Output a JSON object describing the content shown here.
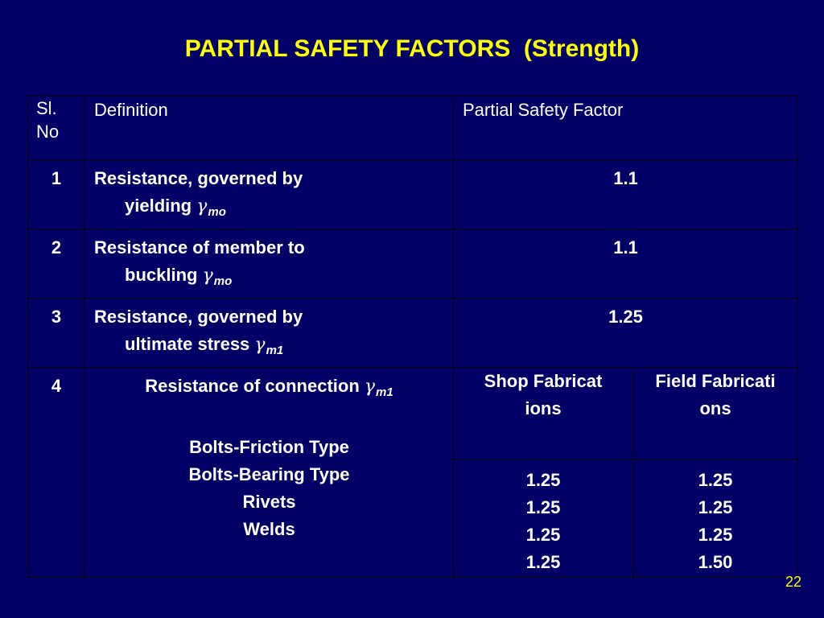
{
  "title": "PARTIAL SAFETY FACTORS  (Strength)",
  "table": {
    "headers": {
      "sl_line1": "Sl.",
      "sl_line2": "No",
      "definition": "Definition",
      "psf": "Partial Safety Factor"
    },
    "rows": [
      {
        "no": "1",
        "line1": "Resistance, governed by",
        "line2": "yielding",
        "symbol": "γ",
        "subscript": "mo",
        "value": "1.1"
      },
      {
        "no": "2",
        "line1": "Resistance of member to",
        "line2": "buckling",
        "symbol": "γ",
        "subscript": "mo",
        "value": "1.1"
      },
      {
        "no": "3",
        "line1": "Resistance, governed by",
        "line2": "ultimate stress",
        "symbol": "γ",
        "subscript": "m1",
        "value": "1.25"
      }
    ],
    "row4": {
      "no": "4",
      "label": "Resistance of connection",
      "symbol": "γ",
      "subscript": "m1",
      "types": [
        "Bolts-Friction Type",
        "Bolts-Bearing Type",
        "Rivets",
        "Welds"
      ],
      "shop_header": "Shop Fabrications",
      "field_header": "Field Fabrications",
      "shop_values": [
        "1.25",
        "1.25",
        "1.25",
        "1.25"
      ],
      "field_values": [
        "1.25",
        "1.25",
        "1.25",
        "1.50"
      ]
    }
  },
  "page_number": "22",
  "colors": {
    "background": "#000066",
    "title": "#ffff00",
    "text": "#ffffff",
    "border": "#000000"
  }
}
